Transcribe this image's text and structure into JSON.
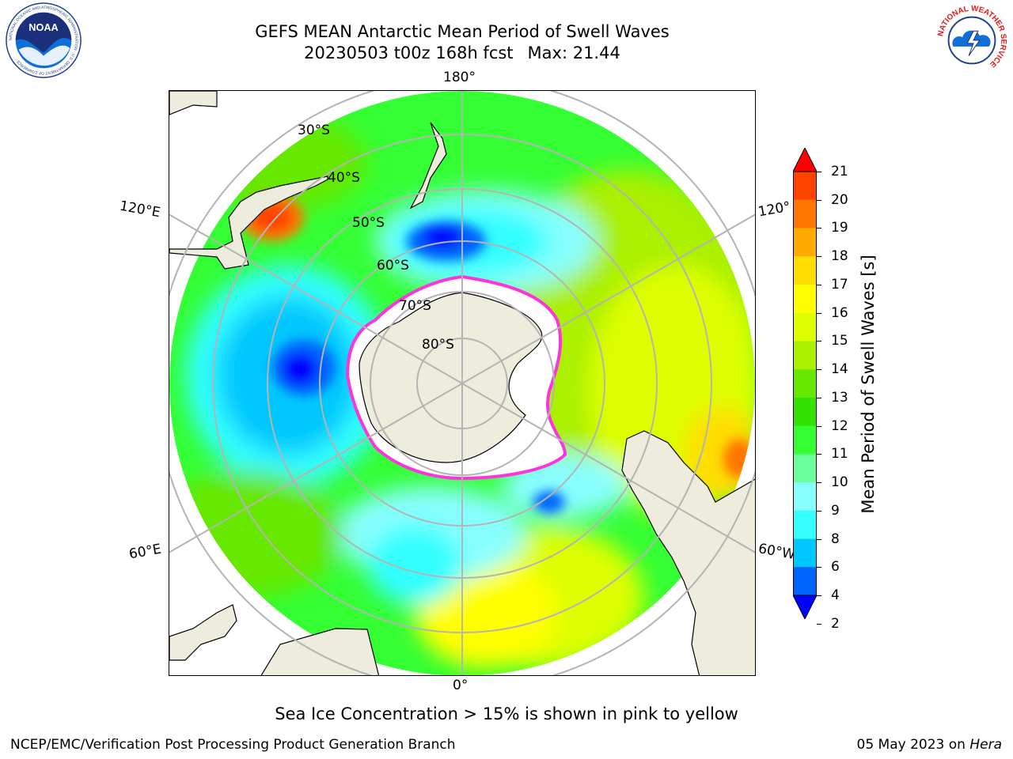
{
  "title": {
    "line1": "GEFS MEAN Antarctic Mean Period of Swell Waves",
    "line2_run": "20230503 t00z 168h fcst",
    "line2_max": "Max: 21.44"
  },
  "map": {
    "projection": "south-polar-stereographic",
    "longitude_labels": {
      "top": "180°",
      "bottom": "0°",
      "left_upper": "120°E",
      "left_lower": "60°E",
      "right_upper": "120°",
      "right_lower": "60°W"
    },
    "latitude_labels": [
      "30°S",
      "40°S",
      "50°S",
      "60°S",
      "70°S",
      "80°S"
    ],
    "colors": {
      "land": "#eeecdc",
      "ice_shelf": "#ffffff",
      "graticule": "#b4b4b4",
      "sea_ice_edge": "#ff33dd"
    },
    "field_regions": [
      {
        "name": "Southern Indian Ocean swell minimum",
        "period_s": 2.5
      },
      {
        "name": "South Tasman Sea swell minimum",
        "period_s": 3
      },
      {
        "name": "Australian Bight high period",
        "period_s": 18.5
      },
      {
        "name": "Chilean coast high period",
        "period_s": 18
      }
    ]
  },
  "colorbar": {
    "label": "Mean Period of Swell Waves [s]",
    "ticks": [
      "21",
      "20",
      "19",
      "18",
      "17",
      "16",
      "15",
      "14",
      "13",
      "12",
      "11",
      "10",
      "9",
      "8",
      "6",
      "4",
      "2"
    ],
    "levels": [
      2,
      4,
      6,
      8,
      9,
      10,
      11,
      12,
      13,
      14,
      15,
      16,
      17,
      18,
      19,
      20,
      21
    ],
    "colors": [
      "#0000ff",
      "#0064ff",
      "#00c8ff",
      "#33ffff",
      "#88ffff",
      "#6aff9a",
      "#33ff33",
      "#33e200",
      "#66e800",
      "#aaf000",
      "#ddff00",
      "#ffff00",
      "#ffdd00",
      "#ffaa00",
      "#ff7700",
      "#ff4400",
      "#ff0000"
    ],
    "extend": "both"
  },
  "note": "Sea Ice Concentration > 15% is shown in pink to yellow",
  "footer": {
    "left": "NCEP/EMC/Verification Post Processing Product Generation Branch",
    "date": "05 May 2023 on",
    "machine": "Hera"
  },
  "logos": {
    "noaa": {
      "text": "NOAA",
      "ring_text": "NATIONAL OCEANIC AND ATMOSPHERIC ADMINISTRATION · U.S. DEPARTMENT OF COMMERCE"
    },
    "nws": {
      "text": "NATIONAL WEATHER SERVICE"
    }
  }
}
